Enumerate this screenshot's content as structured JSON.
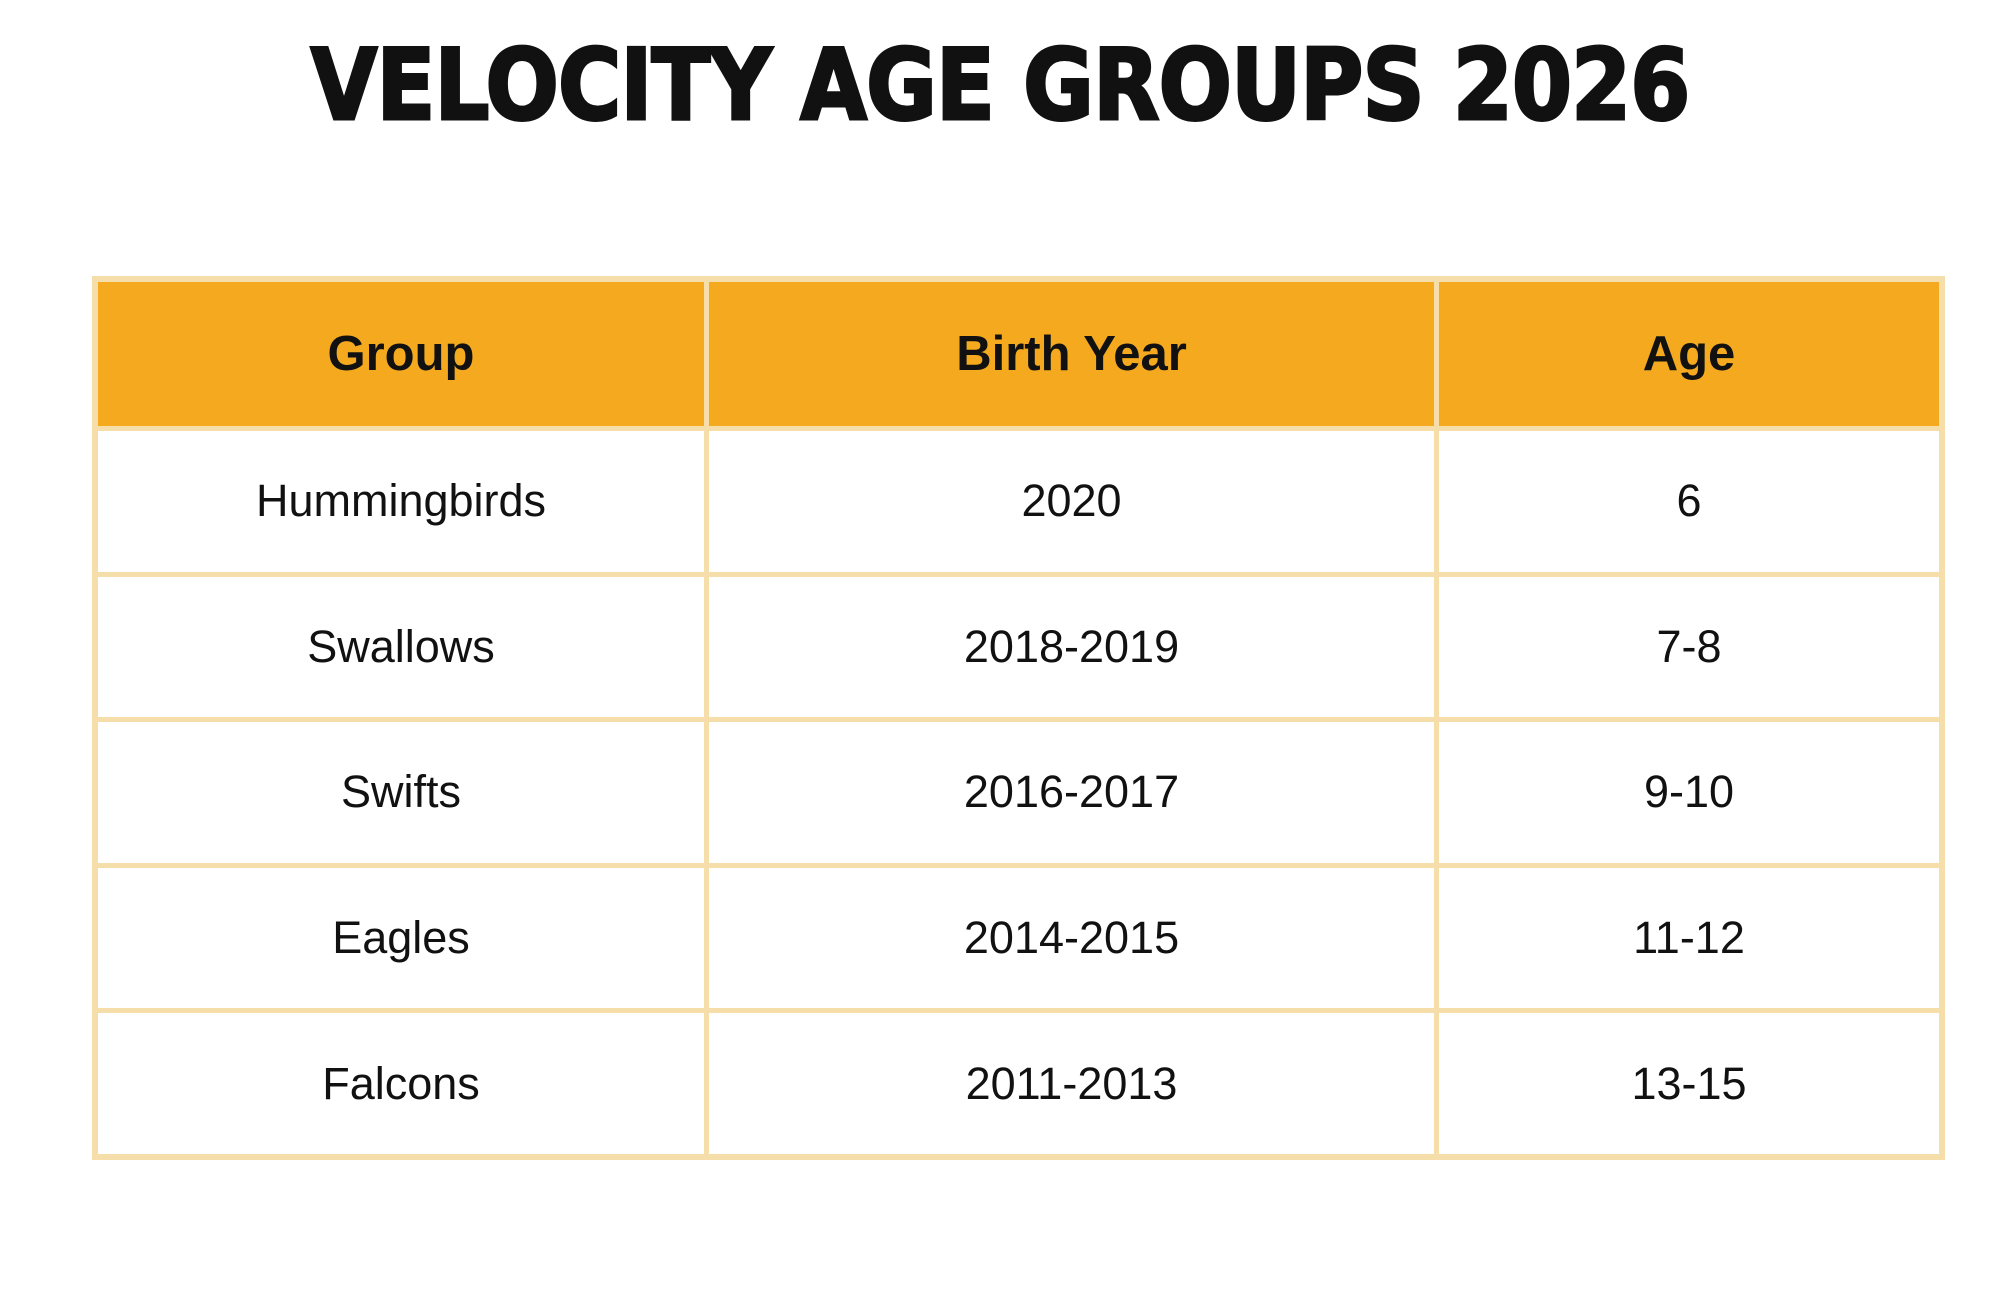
{
  "page": {
    "title": "VELOCITY AGE GROUPS 2026",
    "background": "#FFFFFF"
  },
  "colors": {
    "accent": "#F5A91E",
    "border": "#F6DEAA",
    "text": "#111111",
    "row_bg": "#FFFFFF"
  },
  "table": {
    "columns": [
      "Group",
      "Birth Year",
      "Age"
    ],
    "rows": [
      {
        "group": "Hummingbirds",
        "birth_year": "2020",
        "age": "6"
      },
      {
        "group": "Swallows",
        "birth_year": "2018-2019",
        "age": "7-8"
      },
      {
        "group": "Swifts",
        "birth_year": "2016-2017",
        "age": "9-10"
      },
      {
        "group": "Eagles",
        "birth_year": "2014-2015",
        "age": "11-12"
      },
      {
        "group": "Falcons",
        "birth_year": "2011-2013",
        "age": "13-15"
      }
    ]
  },
  "chart_data": {
    "type": "table",
    "title": "VELOCITY AGE GROUPS 2026",
    "columns": [
      "Group",
      "Birth Year",
      "Age"
    ],
    "rows": [
      [
        "Hummingbirds",
        "2020",
        "6"
      ],
      [
        "Swallows",
        "2018-2019",
        "7-8"
      ],
      [
        "Swifts",
        "2016-2017",
        "9-10"
      ],
      [
        "Eagles",
        "2014-2015",
        "11-12"
      ],
      [
        "Falcons",
        "2011-2013",
        "13-15"
      ]
    ],
    "header_bg": "#F5A91E",
    "grid_color": "#F6DEAA"
  }
}
